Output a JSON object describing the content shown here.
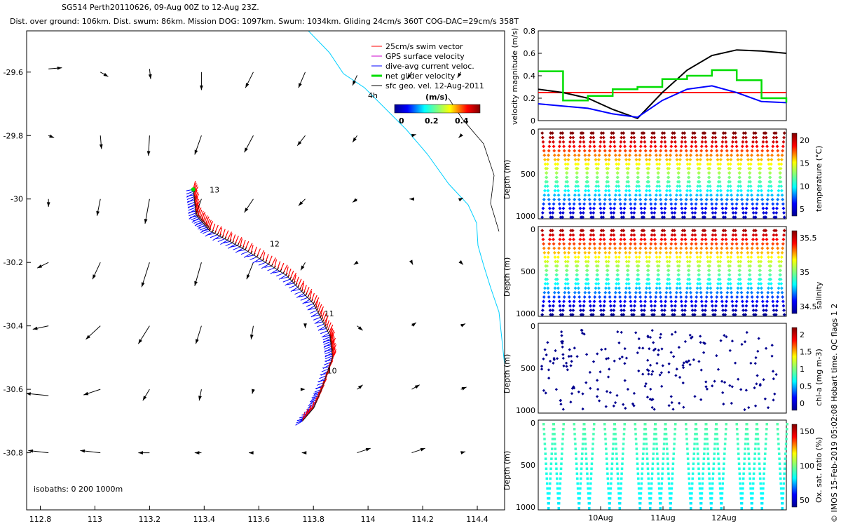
{
  "title_line1": "SG514 Perth20110626, 09-Aug 00Z to 12-Aug 23Z.",
  "title_line2": "Dist. over ground: 106km. Dist. swum: 86km. Mission DOG: 1097km. Swum: 1034km. Gliding 24cm/s 360T COG-DAC=29cm/s 358T",
  "footer_text": "© IMOS 15-Feb-2019 05:02:08 Hobart time. QC flags 1  2",
  "isobaths_note": "isobaths: 0   200  1000m",
  "colors": {
    "swim": "#ff0000",
    "gps": "#cc00cc",
    "dac": "#0000ff",
    "net": "#00dd00",
    "sfc": "#000000",
    "coast": "#00d0ff"
  },
  "chart_data": [
    {
      "type": "scatter",
      "name_tag": "map",
      "xlim": [
        112.75,
        114.5
      ],
      "ylim": [
        -30.98,
        -29.47
      ],
      "x_ticks": [
        112.8,
        113,
        113.2,
        113.4,
        113.6,
        113.8,
        114,
        114.2,
        114.4
      ],
      "x_tick_labels": [
        "112.8",
        "113",
        "113.2",
        "113.4",
        "113.6",
        "113.8",
        "114",
        "114.2",
        "114.4"
      ],
      "y_ticks": [
        -29.6,
        -29.8,
        -30,
        -30.2,
        -30.4,
        -30.6,
        -30.8
      ],
      "y_tick_labels": [
        "-29.6",
        "-29.8",
        "-30",
        "-30.2",
        "-30.4",
        "-30.6",
        "-30.8"
      ],
      "legend": {
        "position": "top-right",
        "entries": [
          "25cm/s swim vector",
          "GPS surface velocity",
          "dive-avg current veloc.",
          "net glider velocity",
          "sfc geo. vel. 12-Aug-2011"
        ],
        "age_label": "4h",
        "colorbar_title": "(m/s)",
        "colorbar_ticks": [
          "0",
          "0.2",
          "0.4"
        ]
      },
      "track_labels": [
        {
          "text": "13",
          "x": 113.42,
          "y": -29.98
        },
        {
          "text": "12",
          "x": 113.64,
          "y": -30.15
        },
        {
          "text": "11",
          "x": 113.84,
          "y": -30.37
        },
        {
          "text": "10",
          "x": 113.85,
          "y": -30.55
        }
      ],
      "track": [
        [
          113.36,
          -29.97
        ],
        [
          113.37,
          -30.05
        ],
        [
          113.42,
          -30.1
        ],
        [
          113.55,
          -30.16
        ],
        [
          113.7,
          -30.24
        ],
        [
          113.8,
          -30.33
        ],
        [
          113.86,
          -30.43
        ],
        [
          113.87,
          -30.5
        ],
        [
          113.83,
          -30.6
        ],
        [
          113.8,
          -30.66
        ],
        [
          113.76,
          -30.7
        ]
      ],
      "current_vectors": [
        {
          "x": 112.83,
          "y": -29.59,
          "u": 0.12,
          "v": 0.01
        },
        {
          "x": 113.02,
          "y": -29.6,
          "u": 0.07,
          "v": -0.04
        },
        {
          "x": 113.2,
          "y": -29.59,
          "u": 0.01,
          "v": -0.09
        },
        {
          "x": 113.39,
          "y": -29.6,
          "u": 0.0,
          "v": -0.16
        },
        {
          "x": 113.58,
          "y": -29.6,
          "u": -0.07,
          "v": -0.14
        },
        {
          "x": 113.77,
          "y": -29.6,
          "u": -0.06,
          "v": -0.14
        },
        {
          "x": 113.96,
          "y": -29.61,
          "u": -0.04,
          "v": -0.09
        },
        {
          "x": 114.16,
          "y": -29.6,
          "u": -0.04,
          "v": -0.06
        },
        {
          "x": 114.34,
          "y": -29.6,
          "u": -0.03,
          "v": -0.05
        },
        {
          "x": 112.83,
          "y": -29.8,
          "u": 0.05,
          "v": -0.02
        },
        {
          "x": 113.02,
          "y": -29.8,
          "u": 0.01,
          "v": -0.12
        },
        {
          "x": 113.2,
          "y": -29.8,
          "u": -0.01,
          "v": -0.18
        },
        {
          "x": 113.39,
          "y": -29.8,
          "u": -0.06,
          "v": -0.17
        },
        {
          "x": 113.58,
          "y": -29.8,
          "u": -0.08,
          "v": -0.15
        },
        {
          "x": 113.77,
          "y": -29.8,
          "u": -0.07,
          "v": -0.09
        },
        {
          "x": 113.96,
          "y": -29.8,
          "u": -0.04,
          "v": -0.06
        },
        {
          "x": 114.16,
          "y": -29.8,
          "u": 0.04,
          "v": 0.01
        },
        {
          "x": 114.34,
          "y": -29.8,
          "u": -0.02,
          "v": -0.02
        },
        {
          "x": 112.83,
          "y": -30.0,
          "u": 0.0,
          "v": -0.07
        },
        {
          "x": 113.02,
          "y": -30.0,
          "u": -0.03,
          "v": -0.15
        },
        {
          "x": 113.2,
          "y": -30.0,
          "u": -0.04,
          "v": -0.22
        },
        {
          "x": 113.39,
          "y": -30.0,
          "u": -0.05,
          "v": -0.14
        },
        {
          "x": 113.58,
          "y": -30.0,
          "u": -0.08,
          "v": -0.12
        },
        {
          "x": 113.77,
          "y": -30.0,
          "u": -0.06,
          "v": -0.06
        },
        {
          "x": 113.96,
          "y": -30.0,
          "u": -0.04,
          "v": -0.03
        },
        {
          "x": 114.16,
          "y": -30.0,
          "u": -0.02,
          "v": 0.0
        },
        {
          "x": 114.34,
          "y": -30.0,
          "u": 0.02,
          "v": 0.01
        },
        {
          "x": 112.83,
          "y": -30.2,
          "u": -0.1,
          "v": -0.05
        },
        {
          "x": 113.02,
          "y": -30.2,
          "u": -0.07,
          "v": -0.15
        },
        {
          "x": 113.2,
          "y": -30.2,
          "u": -0.07,
          "v": -0.22
        },
        {
          "x": 113.39,
          "y": -30.2,
          "u": -0.06,
          "v": -0.21
        },
        {
          "x": 113.58,
          "y": -30.2,
          "u": -0.06,
          "v": -0.15
        },
        {
          "x": 113.77,
          "y": -30.2,
          "u": -0.04,
          "v": -0.07
        },
        {
          "x": 113.96,
          "y": -30.2,
          "u": -0.03,
          "v": -0.02
        },
        {
          "x": 114.16,
          "y": -30.2,
          "u": 0.01,
          "v": -0.02
        },
        {
          "x": 114.34,
          "y": -30.2,
          "u": 0.02,
          "v": -0.02
        },
        {
          "x": 112.83,
          "y": -30.4,
          "u": -0.14,
          "v": -0.03
        },
        {
          "x": 113.02,
          "y": -30.4,
          "u": -0.13,
          "v": -0.12
        },
        {
          "x": 113.2,
          "y": -30.4,
          "u": -0.1,
          "v": -0.16
        },
        {
          "x": 113.39,
          "y": -30.4,
          "u": -0.05,
          "v": -0.16
        },
        {
          "x": 113.58,
          "y": -30.4,
          "u": -0.02,
          "v": -0.12
        },
        {
          "x": 113.77,
          "y": -30.4,
          "u": 0.0,
          "v": -0.02
        },
        {
          "x": 113.96,
          "y": -30.4,
          "u": 0.05,
          "v": -0.04
        },
        {
          "x": 114.16,
          "y": -30.4,
          "u": 0.04,
          "v": 0.03
        },
        {
          "x": 114.34,
          "y": -30.4,
          "u": 0.04,
          "v": 0.02
        },
        {
          "x": 112.83,
          "y": -30.62,
          "u": -0.2,
          "v": 0.02
        },
        {
          "x": 113.02,
          "y": -30.6,
          "u": -0.15,
          "v": -0.05
        },
        {
          "x": 113.2,
          "y": -30.6,
          "u": -0.06,
          "v": -0.1
        },
        {
          "x": 113.39,
          "y": -30.6,
          "u": -0.02,
          "v": -0.1
        },
        {
          "x": 113.58,
          "y": -30.6,
          "u": -0.01,
          "v": -0.04
        },
        {
          "x": 113.77,
          "y": -30.6,
          "u": 0.0,
          "v": 0.0
        },
        {
          "x": 113.96,
          "y": -30.6,
          "u": 0.05,
          "v": 0.04
        },
        {
          "x": 114.16,
          "y": -30.6,
          "u": 0.07,
          "v": 0.04
        },
        {
          "x": 114.34,
          "y": -30.6,
          "u": 0.05,
          "v": 0.02
        },
        {
          "x": 112.83,
          "y": -30.8,
          "u": -0.18,
          "v": 0.02
        },
        {
          "x": 113.02,
          "y": -30.8,
          "u": -0.18,
          "v": 0.02
        },
        {
          "x": 113.2,
          "y": -30.8,
          "u": -0.1,
          "v": 0.0
        },
        {
          "x": 113.39,
          "y": -30.8,
          "u": -0.06,
          "v": 0.0
        },
        {
          "x": 113.58,
          "y": -30.8,
          "u": -0.04,
          "v": 0.0
        },
        {
          "x": 113.77,
          "y": -30.8,
          "u": -0.03,
          "v": 0.0
        },
        {
          "x": 113.96,
          "y": -30.8,
          "u": 0.12,
          "v": 0.04
        },
        {
          "x": 114.16,
          "y": -30.8,
          "u": 0.12,
          "v": 0.04
        },
        {
          "x": 114.34,
          "y": -30.8,
          "u": 0.04,
          "v": 0.01
        }
      ]
    },
    {
      "type": "line",
      "name_tag": "velocity",
      "ylabel": "velocity magnitude (m/s)",
      "ylim": [
        0,
        0.8
      ],
      "y_ticks": [
        0,
        0.2,
        0.4,
        0.6,
        0.8
      ],
      "x": [
        0,
        0.1,
        0.2,
        0.3,
        0.4,
        0.5,
        0.6,
        0.7,
        0.8,
        0.9,
        1
      ],
      "series": [
        {
          "color": "#ff0000",
          "values": [
            0.25,
            0.25,
            0.25,
            0.25,
            0.25,
            0.25,
            0.25,
            0.25,
            0.25,
            0.25,
            0.25
          ]
        },
        {
          "color": "#000000",
          "values": [
            0.28,
            0.25,
            0.2,
            0.1,
            0.02,
            0.25,
            0.45,
            0.58,
            0.63,
            0.62,
            0.6
          ]
        },
        {
          "color": "#0000ff",
          "values": [
            0.15,
            0.13,
            0.11,
            0.06,
            0.03,
            0.18,
            0.28,
            0.31,
            0.25,
            0.17,
            0.16
          ]
        },
        {
          "color": "#00dd00",
          "values": [
            0.44,
            0.18,
            0.22,
            0.28,
            0.3,
            0.37,
            0.4,
            0.45,
            0.36,
            0.2,
            0.16
          ]
        }
      ]
    },
    {
      "type": "scatter",
      "name_tag": "temperature",
      "ylabel": "Depth (m)",
      "colorbar_label": "temperature (°C)",
      "colorbar_ticks": [
        "20",
        "15",
        "10",
        "5"
      ],
      "y_ticks": [
        "0",
        "500",
        "1000"
      ],
      "dives": 24
    },
    {
      "type": "scatter",
      "name_tag": "salinity",
      "ylabel": "Depth (m)",
      "colorbar_label": "salinity",
      "colorbar_ticks": [
        "35.5",
        "35",
        "34.5"
      ],
      "y_ticks": [
        "0",
        "500",
        "1000"
      ],
      "dives": 24
    },
    {
      "type": "scatter",
      "name_tag": "chla",
      "ylabel": "Depth (m)",
      "colorbar_label": "chl-a (mg m-3)",
      "colorbar_ticks": [
        "2",
        "1.5",
        "1",
        "0.5",
        "0"
      ],
      "y_ticks": [
        "0",
        "500",
        "1000"
      ]
    },
    {
      "type": "scatter",
      "name_tag": "oxsat",
      "ylabel": "Depth (m)",
      "colorbar_label": "Ox. sat. ratio (%)",
      "colorbar_ticks": [
        "150",
        "100",
        "50"
      ],
      "y_ticks": [
        "0",
        "500",
        "1000"
      ],
      "x_tick_labels": [
        "10Aug",
        "11Aug",
        "12Aug"
      ]
    }
  ]
}
